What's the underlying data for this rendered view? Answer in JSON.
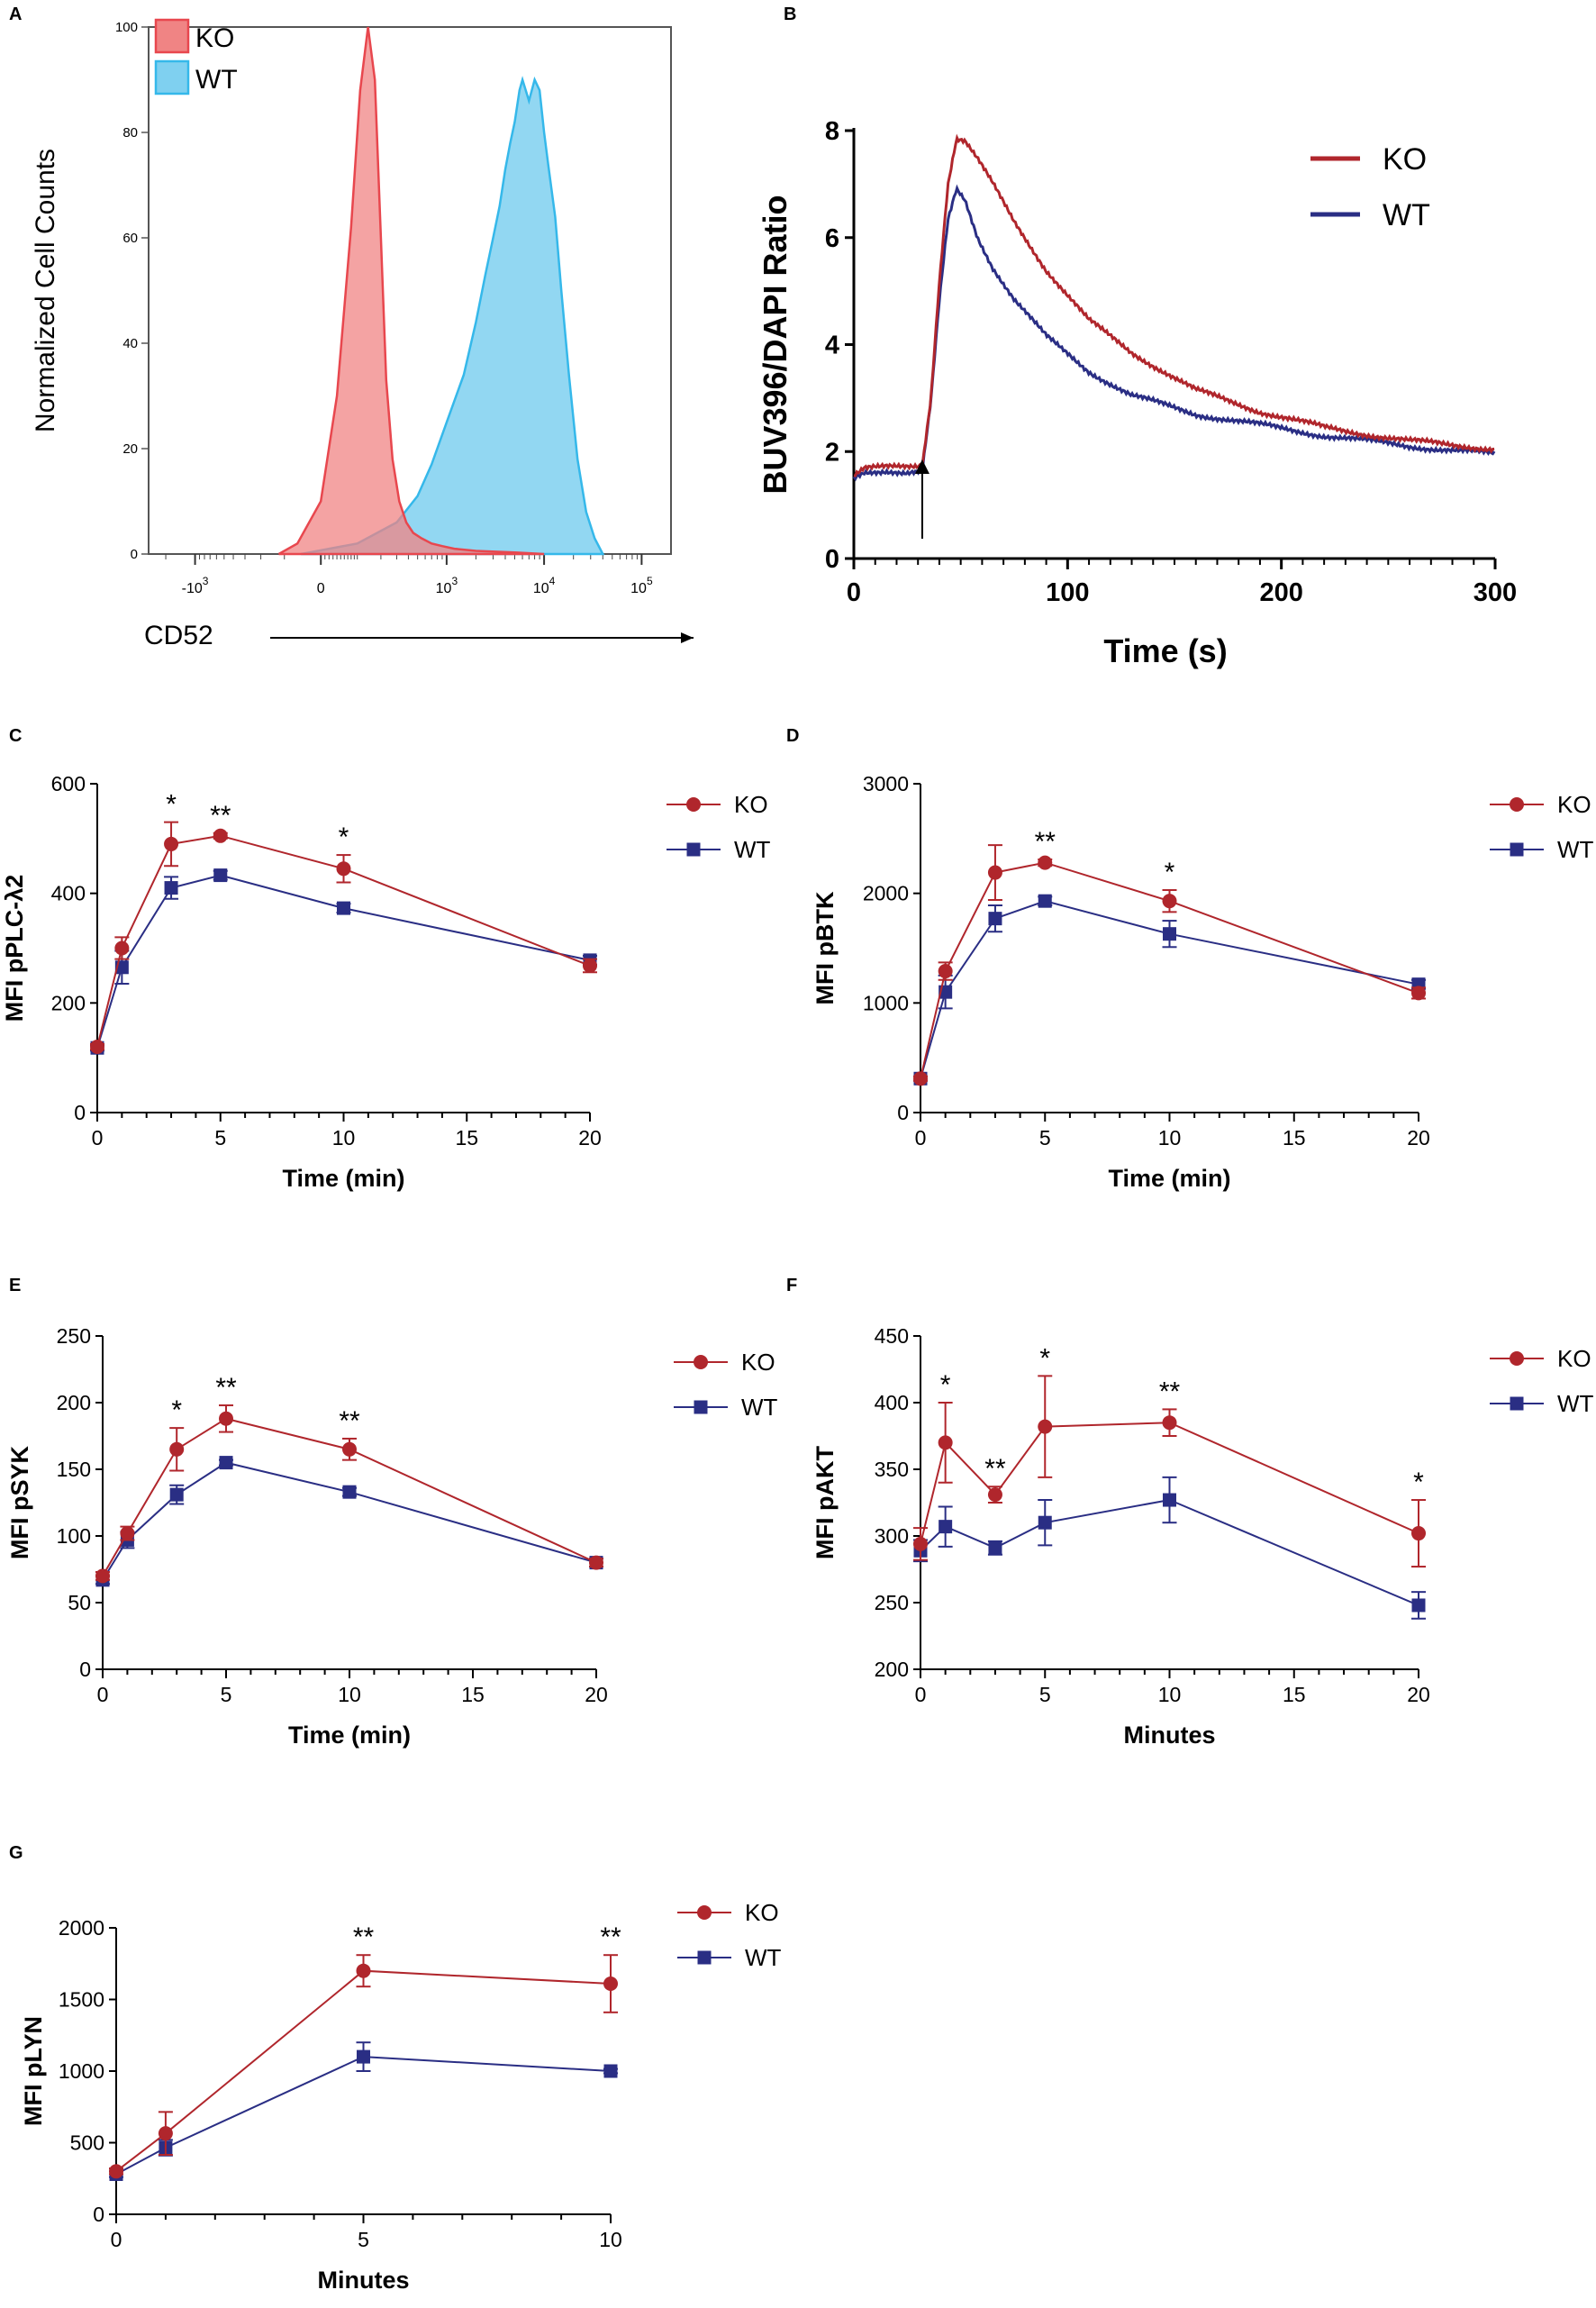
{
  "colors": {
    "ko": "#b0262c",
    "wt": "#2a2e84",
    "ko_fill": "#f08484",
    "wt_fill": "#7fd0f0",
    "ko_line": "#e8474e",
    "wt_line": "#35b8ea"
  },
  "chart_data": [
    {
      "panel": "A",
      "type": "area",
      "title": "",
      "xlabel": "CD52",
      "ylabel": "Normalized Cell Counts",
      "x_scale": "biexponential",
      "xlim": [
        -3000,
        200000
      ],
      "ylim": [
        0,
        100
      ],
      "yticks": [
        "0",
        "20",
        "40",
        "60",
        "80",
        "100"
      ],
      "xticks": [
        {
          "value": -1000,
          "label_base": "-10",
          "label_exp": "3"
        },
        {
          "value": 0,
          "label_base": "0",
          "label_exp": ""
        },
        {
          "value": 1000,
          "label_base": "10",
          "label_exp": "3"
        },
        {
          "value": 10000,
          "label_base": "10",
          "label_exp": "4"
        },
        {
          "value": 100000,
          "label_base": "10",
          "label_exp": "5"
        }
      ],
      "legend": [
        "KO",
        "WT"
      ],
      "legend_position": "top-left",
      "series": [
        {
          "name": "KO",
          "x": [
            -120,
            -60,
            0,
            40,
            80,
            110,
            140,
            170,
            200,
            230,
            270,
            320,
            380,
            450,
            550,
            700,
            900,
            1200,
            2000,
            5000,
            10000
          ],
          "y": [
            0,
            2,
            10,
            30,
            62,
            88,
            100,
            90,
            60,
            33,
            18,
            10,
            6,
            4,
            3,
            2,
            1.5,
            1,
            0.6,
            0.3,
            0
          ]
        },
        {
          "name": "WT",
          "x": [
            -50,
            100,
            300,
            500,
            700,
            1000,
            1500,
            2000,
            2500,
            3000,
            3500,
            4000,
            4500,
            5000,
            5600,
            6000,
            7000,
            8000,
            9000,
            10000,
            11000,
            13000,
            15000,
            18000,
            22000,
            27000,
            33000,
            40000
          ],
          "y": [
            0,
            2,
            6,
            11,
            17,
            25,
            34,
            44,
            53,
            60,
            66,
            73,
            78,
            82,
            88,
            90,
            86,
            90,
            88,
            80,
            74,
            64,
            50,
            34,
            18,
            8,
            3,
            0
          ]
        }
      ]
    },
    {
      "panel": "B",
      "type": "line",
      "title": "",
      "xlabel": "Time (s)",
      "ylabel": "BUV396/DAPI Ratio",
      "xlim": [
        0,
        300
      ],
      "ylim": [
        0,
        8
      ],
      "xticks": [
        0,
        100,
        200,
        300
      ],
      "yticks": [
        0,
        2,
        4,
        6,
        8
      ],
      "legend": [
        "KO",
        "WT"
      ],
      "legend_position": "top-right",
      "annotation": "stimulation arrow at t = 32 s",
      "series": [
        {
          "name": "KO",
          "x": [
            0,
            5,
            15,
            25,
            32,
            36,
            40,
            44,
            48,
            52,
            58,
            65,
            75,
            90,
            110,
            130,
            160,
            190,
            220,
            260,
            300
          ],
          "y": [
            1.55,
            1.68,
            1.7,
            1.72,
            1.75,
            3.0,
            5.2,
            7.0,
            7.85,
            7.8,
            7.45,
            7.0,
            6.3,
            5.4,
            4.45,
            3.85,
            3.15,
            2.75,
            2.45,
            2.2,
            2.05
          ]
        },
        {
          "name": "WT",
          "x": [
            0,
            5,
            15,
            25,
            32,
            36,
            40,
            44,
            48,
            52,
            58,
            65,
            75,
            90,
            110,
            130,
            160,
            190,
            220,
            260,
            300
          ],
          "y": [
            1.5,
            1.62,
            1.65,
            1.6,
            1.62,
            2.9,
            4.8,
            6.3,
            6.9,
            6.7,
            6.0,
            5.45,
            4.85,
            4.15,
            3.5,
            3.05,
            2.7,
            2.5,
            2.3,
            2.1,
            1.95
          ]
        }
      ]
    },
    {
      "panel": "C",
      "type": "line",
      "xlabel": "Time (min)",
      "ylabel": "MFI pPLC-λ2",
      "xlim": [
        0,
        20
      ],
      "ylim": [
        0,
        600
      ],
      "xticks": [
        0,
        5,
        10,
        15,
        20
      ],
      "yticks": [
        0,
        200,
        400,
        600
      ],
      "legend": [
        "KO",
        "WT"
      ],
      "legend_position": "right",
      "x": [
        0,
        1,
        3,
        5,
        10,
        20
      ],
      "series": [
        {
          "name": "KO",
          "values": [
            120,
            300,
            490,
            505,
            445,
            268
          ],
          "errors": [
            5,
            20,
            40,
            5,
            25,
            12
          ]
        },
        {
          "name": "WT",
          "values": [
            118,
            265,
            410,
            433,
            373,
            278
          ],
          "errors": [
            5,
            30,
            20,
            8,
            8,
            8
          ]
        }
      ],
      "significance": [
        {
          "x": 3,
          "label": "*"
        },
        {
          "x": 5,
          "label": "**"
        },
        {
          "x": 10,
          "label": "*"
        }
      ]
    },
    {
      "panel": "D",
      "type": "line",
      "xlabel": "Time (min)",
      "ylabel": "MFI pBTK",
      "xlim": [
        0,
        20
      ],
      "ylim": [
        0,
        3000
      ],
      "xticks": [
        0,
        5,
        10,
        15,
        20
      ],
      "yticks": [
        0,
        1000,
        2000,
        3000
      ],
      "legend": [
        "KO",
        "WT"
      ],
      "legend_position": "right",
      "x": [
        0,
        1,
        3,
        5,
        10,
        20
      ],
      "series": [
        {
          "name": "KO",
          "values": [
            310,
            1290,
            2190,
            2280,
            1930,
            1090
          ],
          "errors": [
            20,
            80,
            250,
            30,
            100,
            50
          ]
        },
        {
          "name": "WT",
          "values": [
            310,
            1100,
            1770,
            1930,
            1630,
            1170
          ],
          "errors": [
            20,
            150,
            120,
            40,
            120,
            40
          ]
        }
      ],
      "significance": [
        {
          "x": 5,
          "label": "**"
        },
        {
          "x": 10,
          "label": "*"
        }
      ]
    },
    {
      "panel": "E",
      "type": "line",
      "xlabel": "Time (min)",
      "ylabel": "MFI pSYK",
      "xlim": [
        0,
        20
      ],
      "ylim": [
        0,
        250
      ],
      "xticks": [
        0,
        5,
        10,
        15,
        20
      ],
      "yticks": [
        0,
        50,
        100,
        150,
        200,
        250
      ],
      "legend": [
        "KO",
        "WT"
      ],
      "legend_position": "right",
      "x": [
        0,
        1,
        3,
        5,
        10,
        20
      ],
      "series": [
        {
          "name": "KO",
          "values": [
            70,
            102,
            165,
            188,
            165,
            80
          ],
          "errors": [
            3,
            5,
            16,
            10,
            8,
            3
          ]
        },
        {
          "name": "WT",
          "values": [
            67,
            97,
            131,
            155,
            133,
            80
          ],
          "errors": [
            3,
            6,
            7,
            2,
            3,
            3
          ]
        }
      ],
      "significance": [
        {
          "x": 3,
          "label": "*"
        },
        {
          "x": 5,
          "label": "**"
        },
        {
          "x": 10,
          "label": "**"
        }
      ]
    },
    {
      "panel": "F",
      "type": "line",
      "xlabel": "Minutes",
      "ylabel": "MFI pAKT",
      "xlim": [
        0,
        20
      ],
      "ylim": [
        200,
        450
      ],
      "xticks": [
        0,
        5,
        10,
        15,
        20
      ],
      "yticks": [
        200,
        250,
        300,
        350,
        400,
        450
      ],
      "legend": [
        "KO",
        "WT"
      ],
      "legend_position": "right",
      "x": [
        0,
        1,
        3,
        5,
        10,
        20
      ],
      "series": [
        {
          "name": "KO",
          "values": [
            294,
            370,
            331,
            382,
            385,
            302
          ],
          "errors": [
            12,
            30,
            6,
            38,
            10,
            25
          ]
        },
        {
          "name": "WT",
          "values": [
            289,
            307,
            291,
            310,
            327,
            248
          ],
          "errors": [
            8,
            15,
            5,
            17,
            17,
            10
          ]
        }
      ],
      "significance": [
        {
          "x": 1,
          "label": "*"
        },
        {
          "x": 3,
          "label": "**"
        },
        {
          "x": 5,
          "label": "*"
        },
        {
          "x": 10,
          "label": "**"
        },
        {
          "x": 20,
          "label": "*"
        }
      ]
    },
    {
      "panel": "G",
      "type": "line",
      "xlabel": "Minutes",
      "ylabel": "MFI pLYN",
      "xlim": [
        0,
        10
      ],
      "ylim": [
        0,
        2000
      ],
      "xticks": [
        0,
        5,
        10
      ],
      "yticks": [
        0,
        500,
        1000,
        1500,
        2000
      ],
      "legend": [
        "KO",
        "WT"
      ],
      "legend_position": "right",
      "x": [
        0,
        1,
        5,
        10
      ],
      "series": [
        {
          "name": "KO",
          "values": [
            300,
            565,
            1700,
            1610
          ],
          "errors": [
            20,
            150,
            110,
            200
          ]
        },
        {
          "name": "WT",
          "values": [
            280,
            465,
            1100,
            1000
          ],
          "errors": [
            20,
            55,
            100,
            15
          ]
        }
      ],
      "significance": [
        {
          "x": 5,
          "label": "**"
        },
        {
          "x": 10,
          "label": "**"
        }
      ]
    }
  ]
}
